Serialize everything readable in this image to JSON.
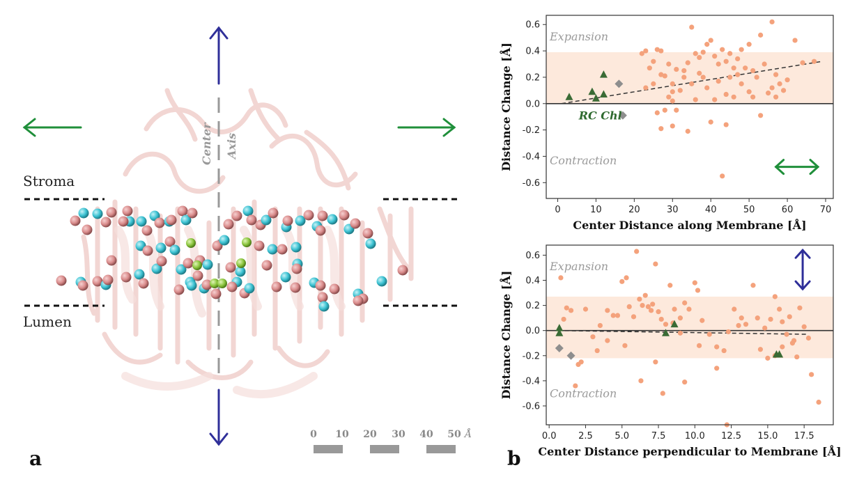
{
  "figure": {
    "panel_a_label": "a",
    "panel_b_label": "b",
    "stroma_label": "Stroma",
    "lumen_label": "Lumen",
    "center_axis_label_1": "Center",
    "center_axis_label_2": "Axis",
    "scale_labels": [
      "0",
      "10",
      "20",
      "30",
      "40",
      "50"
    ],
    "scale_unit": "Å",
    "colors": {
      "arrow_vertical": "#2f2f99",
      "arrow_horizontal": "#1f8f3a",
      "sphere_pink": "#d98b8b",
      "sphere_cyan": "#3cc2d2",
      "sphere_green": "#8cc63f",
      "protein": "#f2d4d2",
      "dashes": "#111111",
      "axis_dash": "#999999"
    }
  },
  "chart_data": [
    {
      "type": "scatter",
      "xlabel": "Center Distance along Membrane [Å]",
      "ylabel": "Distance Change [Å]",
      "xlim": [
        -3,
        72
      ],
      "ylim": [
        -0.72,
        0.67
      ],
      "xticks": [
        0,
        10,
        20,
        30,
        40,
        50,
        60,
        70
      ],
      "yticks": [
        -0.6,
        -0.4,
        -0.2,
        0.0,
        0.2,
        0.4,
        0.6
      ],
      "shade_band": [
        0.0,
        0.39
      ],
      "annotations": {
        "expansion": "Expansion",
        "contraction": "Contraction",
        "rc": "RC Chl"
      },
      "arrow": "horizontal",
      "trend_line": {
        "x": [
          1,
          69
        ],
        "y": [
          0.0,
          0.32
        ]
      },
      "series": [
        {
          "marker": "circle",
          "color": "#f4a27c",
          "points": [
            [
              22,
              0.38
            ],
            [
              23,
              0.4
            ],
            [
              25,
              0.32
            ],
            [
              26,
              0.41
            ],
            [
              27,
              0.4
            ],
            [
              24,
              0.27
            ],
            [
              28,
              0.21
            ],
            [
              29,
              0.3
            ],
            [
              30,
              0.15
            ],
            [
              31,
              0.26
            ],
            [
              33,
              0.25
            ],
            [
              34,
              0.31
            ],
            [
              35,
              0.58
            ],
            [
              36,
              0.38
            ],
            [
              37,
              0.35
            ],
            [
              38,
              0.39
            ],
            [
              39,
              0.45
            ],
            [
              40,
              0.48
            ],
            [
              41,
              0.36
            ],
            [
              42,
              0.3
            ],
            [
              43,
              0.41
            ],
            [
              44,
              0.32
            ],
            [
              45,
              0.38
            ],
            [
              46,
              0.27
            ],
            [
              47,
              0.34
            ],
            [
              48,
              0.41
            ],
            [
              49,
              0.27
            ],
            [
              50,
              0.45
            ],
            [
              51,
              0.25
            ],
            [
              53,
              0.52
            ],
            [
              54,
              0.3
            ],
            [
              56,
              0.62
            ],
            [
              57,
              0.22
            ],
            [
              58,
              0.15
            ],
            [
              60,
              0.18
            ],
            [
              62,
              0.48
            ],
            [
              64,
              0.31
            ],
            [
              67,
              0.32
            ],
            [
              25,
              0.15
            ],
            [
              27,
              0.22
            ],
            [
              29,
              0.05
            ],
            [
              30,
              0.02
            ],
            [
              31,
              -0.05
            ],
            [
              32,
              0.1
            ],
            [
              33,
              0.2
            ],
            [
              35,
              0.15
            ],
            [
              37,
              0.23
            ],
            [
              38,
              0.2
            ],
            [
              41,
              0.03
            ],
            [
              44,
              0.07
            ],
            [
              45,
              0.2
            ],
            [
              47,
              0.22
            ],
            [
              48,
              0.15
            ],
            [
              50,
              0.09
            ],
            [
              51,
              0.05
            ],
            [
              55,
              0.08
            ],
            [
              56,
              0.12
            ],
            [
              57,
              0.05
            ],
            [
              59,
              0.1
            ],
            [
              26,
              -0.07
            ],
            [
              27,
              -0.19
            ],
            [
              28,
              -0.05
            ],
            [
              30,
              -0.17
            ],
            [
              34,
              -0.21
            ],
            [
              40,
              -0.14
            ],
            [
              44,
              -0.16
            ],
            [
              53,
              -0.09
            ],
            [
              43,
              -0.55
            ],
            [
              30,
              0.09
            ],
            [
              23,
              0.12
            ],
            [
              36,
              0.03
            ],
            [
              39,
              0.12
            ],
            [
              42,
              0.17
            ],
            [
              46,
              0.05
            ],
            [
              52,
              0.2
            ]
          ]
        },
        {
          "marker": "triangle",
          "color": "#3a6b35",
          "points": [
            [
              3,
              0.05
            ],
            [
              9,
              0.09
            ],
            [
              10,
              0.04
            ],
            [
              12,
              0.22
            ],
            [
              12,
              0.07
            ]
          ]
        },
        {
          "marker": "diamond",
          "color": "#8e8e8e",
          "points": [
            [
              16,
              0.15
            ],
            [
              17,
              -0.09
            ]
          ]
        }
      ]
    },
    {
      "type": "scatter",
      "xlabel": "Center Distance perpendicular to Membrane [Å]",
      "ylabel": "Distance Change [Å]",
      "xlim": [
        -0.2,
        19.5
      ],
      "ylim": [
        -0.75,
        0.68
      ],
      "xticks": [
        0.0,
        2.5,
        5.0,
        7.5,
        10.0,
        12.5,
        15.0,
        17.5
      ],
      "yticks": [
        -0.6,
        -0.4,
        -0.2,
        0.0,
        0.2,
        0.4,
        0.6
      ],
      "shade_band": [
        -0.22,
        0.27
      ],
      "annotations": {
        "expansion": "Expansion",
        "contraction": "Contraction"
      },
      "arrow": "vertical",
      "trend_line": {
        "x": [
          0.6,
          17.8
        ],
        "y": [
          0.0,
          -0.03
        ]
      },
      "series": [
        {
          "marker": "circle",
          "color": "#f4a27c",
          "points": [
            [
              0.8,
              0.42
            ],
            [
              1.0,
              0.09
            ],
            [
              1.2,
              0.18
            ],
            [
              1.5,
              0.16
            ],
            [
              2.0,
              -0.27
            ],
            [
              2.2,
              -0.25
            ],
            [
              2.5,
              0.17
            ],
            [
              3.0,
              -0.05
            ],
            [
              3.3,
              -0.16
            ],
            [
              3.5,
              0.04
            ],
            [
              4.0,
              0.16
            ],
            [
              4.4,
              0.12
            ],
            [
              4.7,
              0.12
            ],
            [
              5.0,
              0.39
            ],
            [
              5.3,
              0.42
            ],
            [
              5.5,
              0.19
            ],
            [
              5.8,
              0.11
            ],
            [
              6.0,
              0.63
            ],
            [
              6.2,
              0.25
            ],
            [
              6.4,
              0.2
            ],
            [
              6.6,
              0.28
            ],
            [
              6.8,
              0.19
            ],
            [
              7.0,
              0.16
            ],
            [
              7.1,
              0.21
            ],
            [
              7.3,
              0.53
            ],
            [
              7.5,
              0.15
            ],
            [
              7.7,
              0.09
            ],
            [
              8.0,
              0.05
            ],
            [
              8.3,
              0.36
            ],
            [
              8.6,
              0.17
            ],
            [
              9.0,
              0.1
            ],
            [
              9.3,
              0.22
            ],
            [
              9.6,
              0.17
            ],
            [
              10.0,
              0.38
            ],
            [
              10.2,
              0.32
            ],
            [
              10.5,
              0.08
            ],
            [
              11.0,
              -0.03
            ],
            [
              11.5,
              -0.13
            ],
            [
              12.0,
              -0.16
            ],
            [
              12.3,
              -0.01
            ],
            [
              12.7,
              0.17
            ],
            [
              13.0,
              0.04
            ],
            [
              13.5,
              0.05
            ],
            [
              14.0,
              0.36
            ],
            [
              14.3,
              0.1
            ],
            [
              14.8,
              0.02
            ],
            [
              15.0,
              -0.22
            ],
            [
              15.2,
              0.09
            ],
            [
              15.5,
              0.27
            ],
            [
              15.8,
              0.17
            ],
            [
              16.0,
              0.07
            ],
            [
              16.3,
              -0.03
            ],
            [
              16.5,
              0.11
            ],
            [
              16.7,
              -0.1
            ],
            [
              17.0,
              -0.21
            ],
            [
              17.2,
              0.18
            ],
            [
              17.5,
              0.03
            ],
            [
              17.8,
              -0.06
            ],
            [
              18.0,
              -0.35
            ],
            [
              18.5,
              -0.57
            ],
            [
              1.8,
              -0.44
            ],
            [
              5.2,
              -0.12
            ],
            [
              6.3,
              -0.4
            ],
            [
              7.3,
              -0.25
            ],
            [
              7.8,
              -0.5
            ],
            [
              9.3,
              -0.41
            ],
            [
              12.2,
              -0.75
            ],
            [
              11.5,
              -0.3
            ],
            [
              10.3,
              -0.12
            ],
            [
              8.5,
              0.06
            ],
            [
              9.0,
              -0.02
            ],
            [
              15.5,
              -0.2
            ],
            [
              16.0,
              -0.13
            ],
            [
              16.8,
              -0.08
            ],
            [
              14.5,
              -0.15
            ],
            [
              13.2,
              0.1
            ],
            [
              4.0,
              -0.08
            ]
          ]
        },
        {
          "marker": "triangle",
          "color": "#3a6b35",
          "points": [
            [
              0.7,
              0.02
            ],
            [
              0.7,
              -0.02
            ],
            [
              8.0,
              -0.02
            ],
            [
              8.6,
              0.05
            ],
            [
              15.6,
              -0.19
            ],
            [
              15.8,
              -0.19
            ]
          ]
        },
        {
          "marker": "diamond",
          "color": "#8e8e8e",
          "points": [
            [
              0.7,
              -0.14
            ],
            [
              1.5,
              -0.2
            ]
          ]
        }
      ]
    }
  ]
}
